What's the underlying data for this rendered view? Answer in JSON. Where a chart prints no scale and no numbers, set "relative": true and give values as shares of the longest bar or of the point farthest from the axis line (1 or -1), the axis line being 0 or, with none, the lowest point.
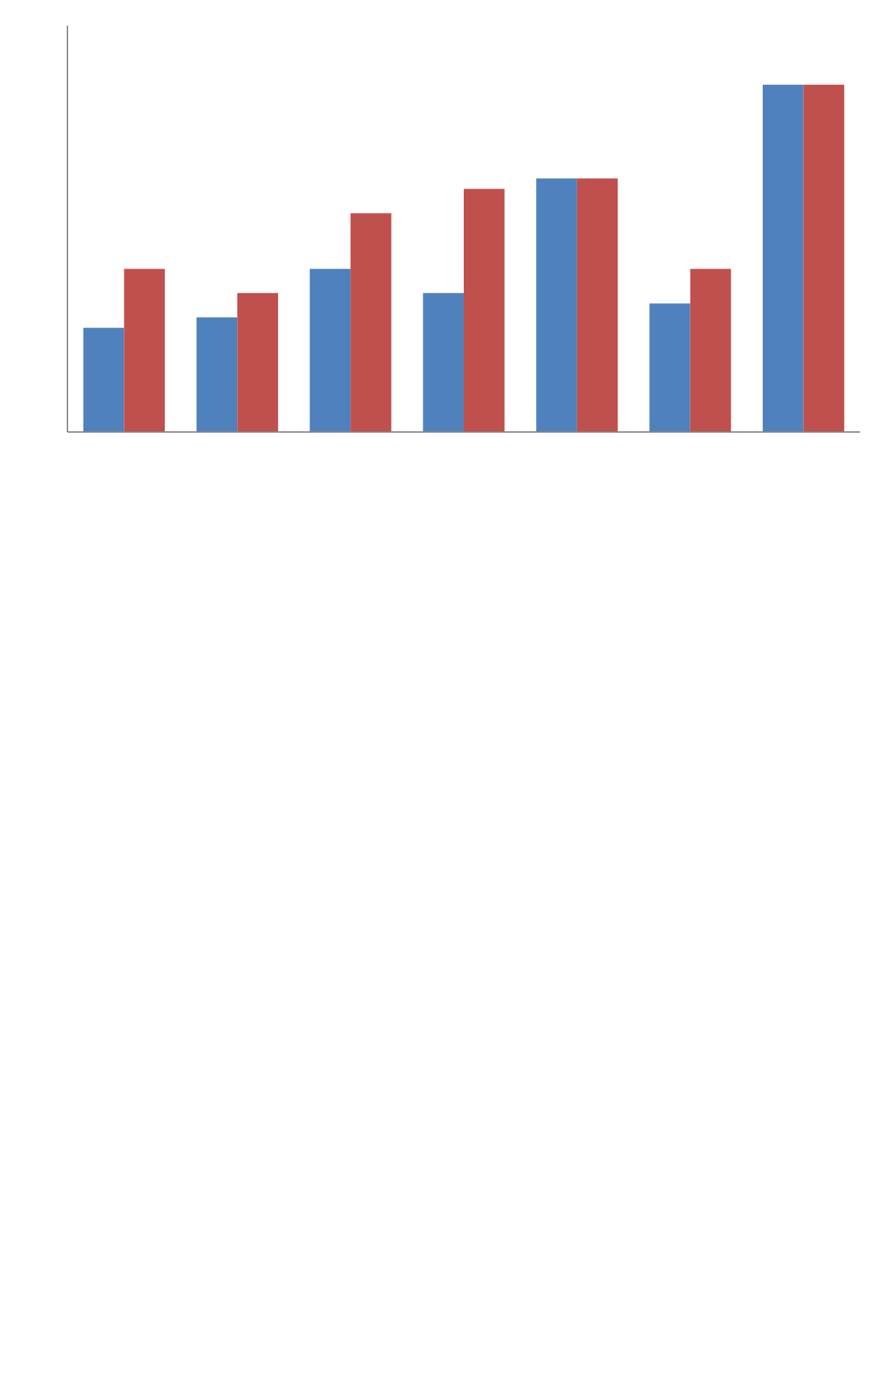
{
  "chart_data": {
    "type": "bar",
    "relative": true,
    "categories": [
      null,
      null,
      null,
      null,
      null,
      null,
      null
    ],
    "series": [
      {
        "color": "#4f81bd",
        "values": [
          0.3,
          0.33,
          0.47,
          0.4,
          0.73,
          0.37,
          1.0
        ]
      },
      {
        "color": "#c0504d",
        "values": [
          0.47,
          0.4,
          0.63,
          0.7,
          0.73,
          0.47,
          1.0
        ]
      }
    ]
  }
}
